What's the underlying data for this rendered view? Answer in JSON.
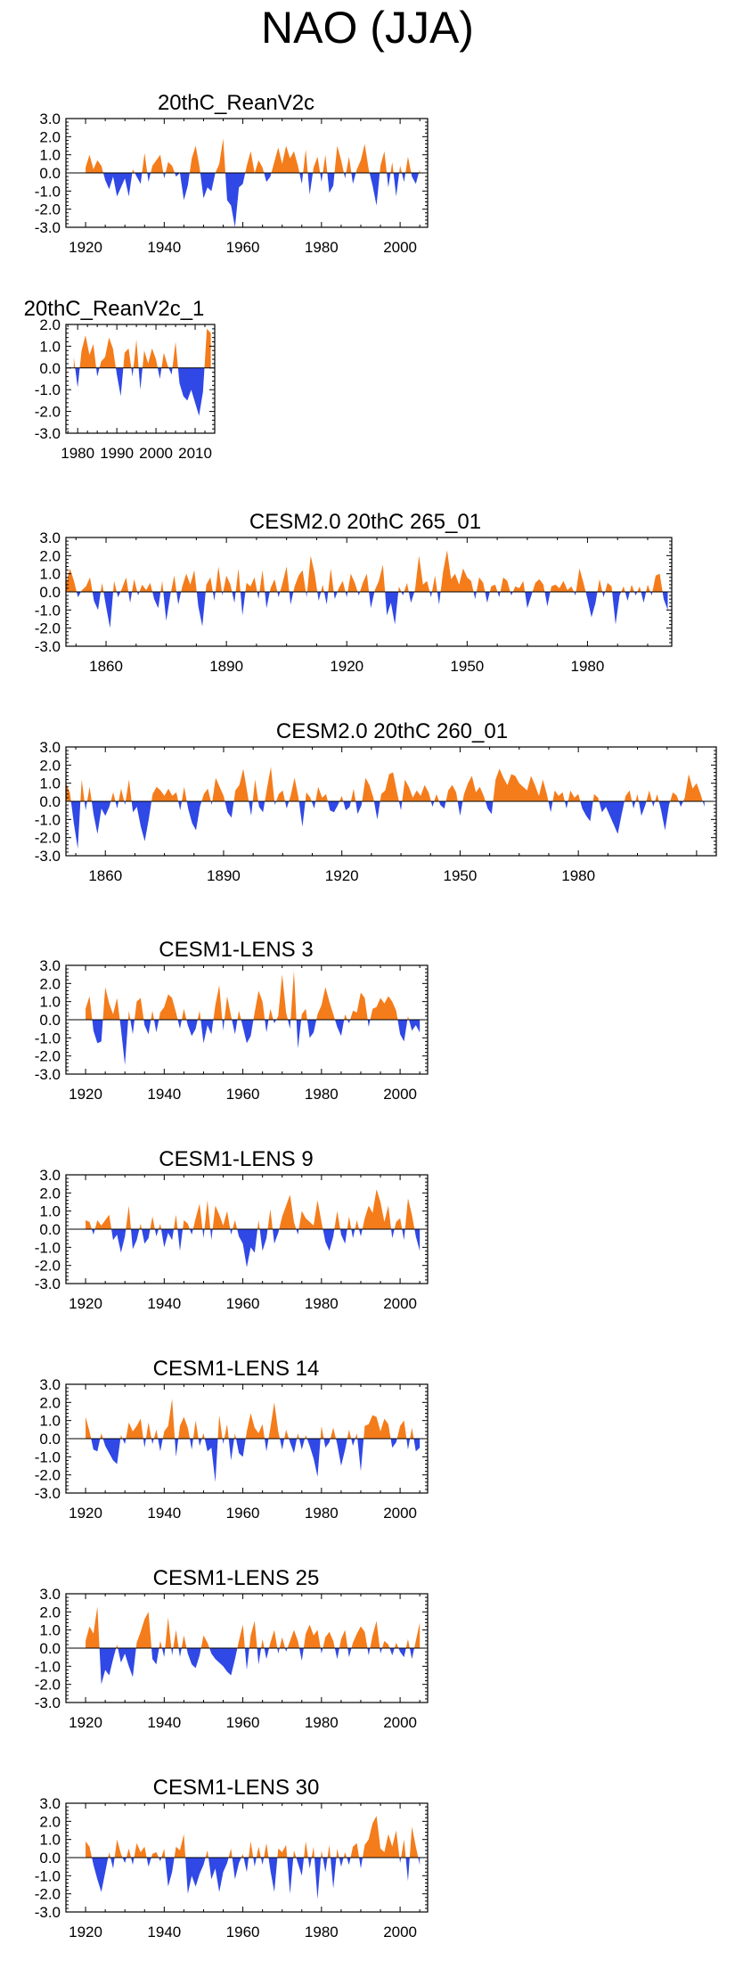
{
  "figure_title": "NAO (JJA)",
  "colors": {
    "positive": "#f47c1b",
    "negative": "#2f48e6",
    "axis": "#000000"
  },
  "chart_data": [
    {
      "type": "area",
      "title": "20thC_ReanV2c",
      "x_start": 1920,
      "x_end": 2005,
      "xlim": [
        1915,
        2007
      ],
      "xticks": [
        1920,
        1940,
        1960,
        1980,
        2000
      ],
      "xtick_labels": [
        "1920",
        "1940",
        "1960",
        "1980",
        "2000"
      ],
      "ylim": [
        -3.0,
        3.0
      ],
      "yticks": [
        "-3.0",
        "-2.0",
        "-1.0",
        "0.0",
        "1.0",
        "2.0",
        "3.0"
      ],
      "values": [
        0.3,
        1.0,
        0.2,
        0.7,
        0.4,
        -0.4,
        -0.9,
        -0.2,
        -1.3,
        -0.8,
        -0.3,
        -1.3,
        0.2,
        -0.2,
        -0.6,
        1.1,
        -0.5,
        0.4,
        0.7,
        1.0,
        -0.3,
        0.6,
        0.4,
        -0.2,
        0.0,
        -1.5,
        -0.7,
        0.8,
        1.5,
        0.3,
        -1.4,
        -0.8,
        -1.0,
        0.0,
        0.5,
        1.9,
        -1.5,
        -1.8,
        -3.0,
        -0.8,
        -0.6,
        0.4,
        1.2,
        0.0,
        0.7,
        0.3,
        -0.5,
        -0.2,
        0.6,
        1.4,
        0.5,
        1.5,
        0.8,
        1.2,
        0.4,
        -0.6,
        1.3,
        -1.2,
        0.3,
        0.9,
        -0.5,
        1.0,
        -1.1,
        -0.7,
        1.5,
        0.7,
        -0.3,
        0.9,
        -0.6,
        0.2,
        0.7,
        1.6,
        0.2,
        -0.7,
        -1.8,
        0.4,
        1.2,
        -0.8,
        0.6,
        -1.3,
        0.4,
        -0.5,
        0.9,
        -0.2,
        -0.6,
        0.2
      ]
    },
    {
      "type": "area",
      "title": "20thC_ReanV2c_1",
      "x_start": 1979,
      "x_end": 2014,
      "xlim": [
        1977,
        2015
      ],
      "xticks": [
        1980,
        1990,
        2000,
        2010
      ],
      "xtick_labels": [
        "1980",
        "1990",
        "2000",
        "2010"
      ],
      "ylim": [
        -3.0,
        2.0
      ],
      "yticks": [
        "-3.0",
        "-2.0",
        "-1.0",
        "0.0",
        "1.0",
        "2.0"
      ],
      "values": [
        0.5,
        -0.9,
        0.8,
        1.5,
        0.6,
        1.1,
        -0.4,
        0.3,
        0.5,
        1.4,
        0.9,
        -0.3,
        -1.3,
        0.7,
        0.9,
        -0.4,
        1.3,
        -1.0,
        0.8,
        0.2,
        0.9,
        0.4,
        -0.5,
        0.7,
        0.1,
        -0.3,
        1.2,
        -0.7,
        -1.3,
        -1.5,
        -1.0,
        -1.6,
        -2.2,
        -1.1,
        1.8,
        1.6
      ]
    },
    {
      "type": "area",
      "title": "CESM2.0 20thC 265_01",
      "x_start": 1850,
      "x_end": 2000,
      "xlim": [
        1850,
        2001
      ],
      "xticks": [
        1860,
        1890,
        1920,
        1950,
        1980
      ],
      "xtick_labels": [
        "1860",
        "1890",
        "1920",
        "1950",
        "1980"
      ],
      "ylim": [
        -3.0,
        3.0
      ],
      "yticks": [
        "-3.0",
        "-2.0",
        "-1.0",
        "0.0",
        "1.0",
        "2.0",
        "3.0"
      ],
      "values": [
        0.4,
        1.3,
        0.6,
        -0.3,
        0.1,
        0.3,
        0.8,
        -0.5,
        -1.0,
        0.5,
        -0.8,
        -2.0,
        0.6,
        -0.3,
        0.2,
        0.8,
        -0.6,
        0.7,
        -0.2,
        0.4,
        0.1,
        0.5,
        -0.4,
        -0.9,
        0.6,
        -1.6,
        -0.2,
        0.9,
        -0.7,
        0.3,
        1.0,
        0.4,
        1.2,
        -0.8,
        -1.9,
        0.4,
        0.8,
        -0.5,
        1.4,
        -0.2,
        0.9,
        0.4,
        -0.6,
        1.3,
        -1.3,
        0.5,
        0.3,
        0.8,
        -0.4,
        1.2,
        -0.9,
        0.2,
        0.7,
        -0.3,
        0.5,
        1.4,
        -0.7,
        0.3,
        0.9,
        1.2,
        -0.3,
        2.0,
        1.0,
        -0.5,
        0.4,
        -0.7,
        1.3,
        -0.4,
        0.2,
        0.6,
        -0.3,
        1.0,
        0.5,
        -0.2,
        0.5,
        1.0,
        -0.9,
        0.1,
        0.6,
        1.5,
        -1.3,
        -0.6,
        -1.8,
        0.3,
        -0.2,
        0.5,
        -0.6,
        0.1,
        2.0,
        0.4,
        0.6,
        -0.3,
        0.9,
        -0.7,
        1.1,
        2.3,
        0.7,
        1.0,
        0.4,
        1.3,
        0.8,
        0.6,
        -0.4,
        0.8,
        0.5,
        -0.6,
        0.3,
        0.4,
        -0.3,
        0.8,
        0.6,
        -0.2,
        0.3,
        0.2,
        0.6,
        -0.9,
        -0.2,
        0.5,
        0.7,
        0.4,
        -0.8,
        0.3,
        0.4,
        0.2,
        0.6,
        0.1,
        0.3,
        -0.2,
        1.3,
        0.5,
        -0.4,
        -1.4,
        -0.6,
        0.7,
        -0.3,
        0.5,
        0.3,
        -1.8,
        -0.2,
        0.3,
        -0.5,
        0.4,
        -0.2,
        0.3,
        -0.6,
        0.4,
        -0.2,
        0.9,
        1.0,
        -0.4,
        -1.0
      ]
    },
    {
      "type": "area",
      "title": "CESM2.0 20thC 260_01",
      "x_start": 1850,
      "x_end": 2014,
      "xlim": [
        1850,
        2015
      ],
      "xticks": [
        1860,
        1890,
        1920,
        1950,
        1980
      ],
      "xtick_labels": [
        "1860",
        "1890",
        "1920",
        "1950",
        "1980"
      ],
      "ylim": [
        -3.0,
        3.0
      ],
      "yticks": [
        "-3.0",
        "-2.0",
        "-1.0",
        "0.0",
        "1.0",
        "2.0",
        "3.0"
      ],
      "values": [
        1.0,
        0.5,
        -1.2,
        -2.6,
        1.2,
        -0.5,
        0.8,
        -0.7,
        -1.8,
        -0.4,
        -0.8,
        -0.3,
        0.5,
        -0.4,
        0.7,
        -0.2,
        1.2,
        -0.6,
        -0.3,
        -1.4,
        -2.2,
        -1.0,
        0.4,
        0.8,
        0.6,
        0.3,
        0.7,
        0.3,
        0.5,
        -0.5,
        0.8,
        -0.4,
        -1.2,
        -1.6,
        -0.3,
        0.4,
        0.7,
        -0.2,
        1.3,
        0.8,
        0.3,
        -0.6,
        -0.9,
        0.6,
        0.9,
        1.8,
        0.5,
        -0.8,
        1.2,
        -0.3,
        -0.6,
        0.7,
        1.9,
        -0.2,
        0.4,
        0.6,
        -0.4,
        0.3,
        1.3,
        0.2,
        -1.4,
        0.5,
        0.2,
        -0.4,
        0.8,
        0.2,
        0.4,
        -0.5,
        -0.6,
        -0.2,
        0.3,
        -0.5,
        -0.3,
        0.7,
        -0.7,
        -0.2,
        1.3,
        0.9,
        0.2,
        -1.0,
        0.4,
        0.6,
        1.5,
        1.6,
        0.5,
        -0.5,
        1.2,
        0.8,
        0.2,
        0.6,
        0.3,
        0.9,
        0.5,
        -0.3,
        0.4,
        -0.2,
        -0.4,
        0.6,
        0.9,
        0.5,
        -0.8,
        0.4,
        1.0,
        1.4,
        0.5,
        0.8,
        0.3,
        -0.4,
        -0.7,
        1.2,
        1.8,
        1.3,
        0.9,
        1.5,
        1.4,
        1.0,
        0.8,
        0.6,
        1.4,
        0.9,
        0.3,
        1.2,
        0.4,
        -0.6,
        0.6,
        0.3,
        0.5,
        -0.4,
        0.6,
        0.2,
        0.4,
        -0.4,
        -0.8,
        -1.1,
        0.4,
        0.2,
        -0.6,
        -0.3,
        -0.8,
        -1.3,
        -1.8,
        -0.7,
        0.3,
        0.6,
        -0.4,
        0.4,
        -0.8,
        -0.2,
        0.6,
        -0.3,
        0.4,
        -0.5,
        -1.6,
        -0.2,
        0.5,
        0.3,
        -0.3,
        0.2,
        1.5,
        0.7,
        1.0,
        0.4,
        -0.3
      ]
    },
    {
      "type": "area",
      "title": "CESM1-LENS 3",
      "x_start": 1920,
      "x_end": 2005,
      "xlim": [
        1915,
        2007
      ],
      "xticks": [
        1920,
        1940,
        1960,
        1980,
        2000
      ],
      "xtick_labels": [
        "1920",
        "1940",
        "1960",
        "1980",
        "2000"
      ],
      "ylim": [
        -3.0,
        3.0
      ],
      "yticks": [
        "-3.0",
        "-2.0",
        "-1.0",
        "0.0",
        "1.0",
        "2.0",
        "3.0"
      ],
      "values": [
        0.6,
        1.3,
        -0.6,
        -1.3,
        -1.2,
        1.8,
        0.9,
        0.3,
        1.2,
        -0.5,
        -2.5,
        0.5,
        -0.8,
        1.0,
        1.2,
        -0.3,
        -0.8,
        0.5,
        -0.7,
        0.4,
        0.7,
        1.4,
        1.2,
        0.4,
        -0.5,
        0.6,
        -0.3,
        -0.9,
        -0.5,
        0.5,
        -1.3,
        -0.3,
        -0.8,
        0.8,
        1.9,
        -0.6,
        1.3,
        0.2,
        -0.8,
        0.5,
        -0.4,
        -1.3,
        -0.9,
        0.4,
        1.6,
        1.0,
        -0.7,
        0.6,
        -0.2,
        0.2,
        2.5,
        0.4,
        -0.5,
        2.7,
        -1.6,
        0.3,
        0.6,
        -1.0,
        -0.7,
        0.3,
        0.8,
        1.8,
        1.0,
        0.3,
        -0.4,
        -0.9,
        0.3,
        -0.2,
        0.5,
        0.4,
        1.5,
        1.2,
        -0.4,
        0.6,
        0.7,
        1.2,
        0.9,
        1.3,
        1.0,
        0.5,
        -0.8,
        -1.2,
        0.2,
        -0.6,
        -0.3,
        -0.7
      ]
    },
    {
      "type": "area",
      "title": "CESM1-LENS 9",
      "x_start": 1920,
      "x_end": 2005,
      "xlim": [
        1915,
        2007
      ],
      "xticks": [
        1920,
        1940,
        1960,
        1980,
        2000
      ],
      "xtick_labels": [
        "1920",
        "1940",
        "1960",
        "1980",
        "2000"
      ],
      "ylim": [
        -3.0,
        3.0
      ],
      "yticks": [
        "-3.0",
        "-2.0",
        "-1.0",
        "0.0",
        "1.0",
        "2.0",
        "3.0"
      ],
      "values": [
        0.5,
        0.4,
        -0.3,
        0.5,
        0.2,
        0.5,
        0.8,
        -0.6,
        -0.3,
        -1.3,
        -0.4,
        1.3,
        -1.1,
        -0.6,
        0.3,
        -0.8,
        -0.5,
        0.7,
        -0.4,
        0.3,
        -1.0,
        -0.2,
        -0.6,
        0.8,
        -1.2,
        0.5,
        0.3,
        -0.3,
        0.6,
        1.4,
        -0.5,
        1.6,
        -0.6,
        1.3,
        0.8,
        0.2,
        1.0,
        -0.3,
        0.5,
        -0.4,
        -0.8,
        -2.1,
        -1.0,
        -1.3,
        0.5,
        -1.2,
        -0.5,
        1.1,
        -0.8,
        -0.2,
        0.7,
        1.3,
        1.9,
        0.4,
        -0.3,
        1.0,
        0.6,
        0.4,
        0.2,
        1.6,
        0.4,
        -0.7,
        -1.2,
        -0.4,
        1.0,
        -0.3,
        -0.8,
        0.7,
        -0.5,
        0.5,
        -0.4,
        0.6,
        1.3,
        0.9,
        2.2,
        1.5,
        0.4,
        1.3,
        -0.5,
        0.4,
        0.6,
        -0.6,
        1.7,
        0.8,
        -0.4,
        -1.2
      ]
    },
    {
      "type": "area",
      "title": "CESM1-LENS 14",
      "x_start": 1920,
      "x_end": 2005,
      "xlim": [
        1915,
        2007
      ],
      "xticks": [
        1920,
        1940,
        1960,
        1980,
        2000
      ],
      "xtick_labels": [
        "1920",
        "1940",
        "1960",
        "1980",
        "2000"
      ],
      "ylim": [
        -3.0,
        3.0
      ],
      "yticks": [
        "-3.0",
        "-2.0",
        "-1.0",
        "0.0",
        "1.0",
        "2.0",
        "3.0"
      ],
      "values": [
        1.2,
        0.4,
        -0.6,
        -0.7,
        0.3,
        -0.4,
        -0.8,
        -1.2,
        -1.4,
        0.2,
        -0.3,
        0.9,
        0.4,
        0.7,
        1.1,
        -0.5,
        0.9,
        -0.3,
        0.5,
        -0.7,
        0.4,
        0.7,
        2.2,
        -1.0,
        0.7,
        1.2,
        0.6,
        -0.6,
        1.0,
        -0.4,
        0.3,
        -0.7,
        -0.5,
        -2.4,
        1.3,
        -0.3,
        0.8,
        -1.2,
        0.3,
        -0.8,
        -1.0,
        0.4,
        1.4,
        0.6,
        0.3,
        0.8,
        -0.7,
        0.6,
        2.0,
        0.4,
        -0.6,
        0.5,
        -0.2,
        -0.8,
        0.3,
        -0.6,
        0.2,
        -0.4,
        -1.1,
        -2.1,
        0.7,
        -0.5,
        -0.2,
        0.6,
        -0.3,
        -1.5,
        -0.6,
        0.5,
        -0.4,
        0.3,
        -1.8,
        0.7,
        0.8,
        1.3,
        1.2,
        0.4,
        1.1,
        0.8,
        -0.5,
        -0.2,
        0.7,
        1.0,
        -0.6,
        0.6,
        -0.7,
        -0.5
      ]
    },
    {
      "type": "area",
      "title": "CESM1-LENS 25",
      "x_start": 1920,
      "x_end": 2005,
      "xlim": [
        1915,
        2007
      ],
      "xticks": [
        1920,
        1940,
        1960,
        1980,
        2000
      ],
      "xtick_labels": [
        "1920",
        "1940",
        "1960",
        "1980",
        "2000"
      ],
      "ylim": [
        -3.0,
        3.0
      ],
      "yticks": [
        "-3.0",
        "-2.0",
        "-1.0",
        "0.0",
        "1.0",
        "2.0",
        "3.0"
      ],
      "values": [
        0.4,
        1.2,
        0.8,
        2.3,
        -2.0,
        -1.2,
        -1.5,
        -0.6,
        0.2,
        -0.8,
        -0.3,
        -1.0,
        -1.6,
        0.3,
        0.9,
        1.6,
        2.0,
        -0.6,
        -0.9,
        0.4,
        -0.5,
        1.7,
        -0.4,
        1.0,
        -0.5,
        0.7,
        -0.3,
        -0.9,
        -1.1,
        -0.4,
        0.7,
        0.3,
        -0.3,
        -0.6,
        -0.8,
        -1.0,
        -1.3,
        -1.5,
        -0.6,
        0.4,
        1.3,
        -1.2,
        0.7,
        1.5,
        -0.9,
        0.5,
        -0.6,
        0.3,
        1.0,
        -0.3,
        0.6,
        -0.2,
        0.4,
        1.0,
        0.4,
        -0.7,
        0.8,
        1.3,
        0.7,
        1.0,
        -0.3,
        0.6,
        0.9,
        0.4,
        -0.6,
        0.5,
        1.0,
        -0.5,
        0.3,
        0.8,
        1.2,
        0.9,
        -0.4,
        0.7,
        1.5,
        -0.3,
        0.4,
        0.2,
        -0.4,
        0.3,
        -0.2,
        -0.5,
        0.5,
        -0.6,
        0.4,
        1.4
      ]
    },
    {
      "type": "area",
      "title": "CESM1-LENS 30",
      "x_start": 1920,
      "x_end": 2005,
      "xlim": [
        1915,
        2007
      ],
      "xticks": [
        1920,
        1940,
        1960,
        1980,
        2000
      ],
      "xtick_labels": [
        "1920",
        "1940",
        "1960",
        "1980",
        "2000"
      ],
      "ylim": [
        -3.0,
        3.0
      ],
      "yticks": [
        "-3.0",
        "-2.0",
        "-1.0",
        "0.0",
        "1.0",
        "2.0",
        "3.0"
      ],
      "values": [
        0.9,
        0.6,
        -0.4,
        -1.2,
        -1.9,
        -0.8,
        0.3,
        -0.6,
        1.0,
        0.2,
        -0.3,
        0.5,
        -0.4,
        0.8,
        0.3,
        0.6,
        -0.5,
        0.2,
        0.3,
        -0.2,
        0.5,
        -1.6,
        -0.8,
        0.6,
        0.4,
        1.3,
        -2.0,
        -1.0,
        -1.6,
        -0.9,
        -0.4,
        0.4,
        -1.2,
        -0.6,
        -1.9,
        -0.8,
        -0.3,
        0.5,
        -1.2,
        -0.3,
        0.2,
        -0.8,
        0.9,
        -0.5,
        0.6,
        -0.4,
        0.8,
        -0.7,
        -1.9,
        0.5,
        0.3,
        0.7,
        -2.0,
        0.4,
        -0.3,
        -1.0,
        0.9,
        -0.6,
        0.6,
        -2.3,
        0.4,
        -0.8,
        0.7,
        -1.7,
        0.5,
        -0.5,
        0.3,
        -0.4,
        0.6,
        0.8,
        -0.6,
        0.7,
        1.0,
        1.9,
        2.3,
        0.5,
        0.3,
        1.3,
        0.6,
        1.5,
        -0.3,
        1.0,
        -1.3,
        1.7,
        0.6,
        -0.4
      ]
    }
  ]
}
